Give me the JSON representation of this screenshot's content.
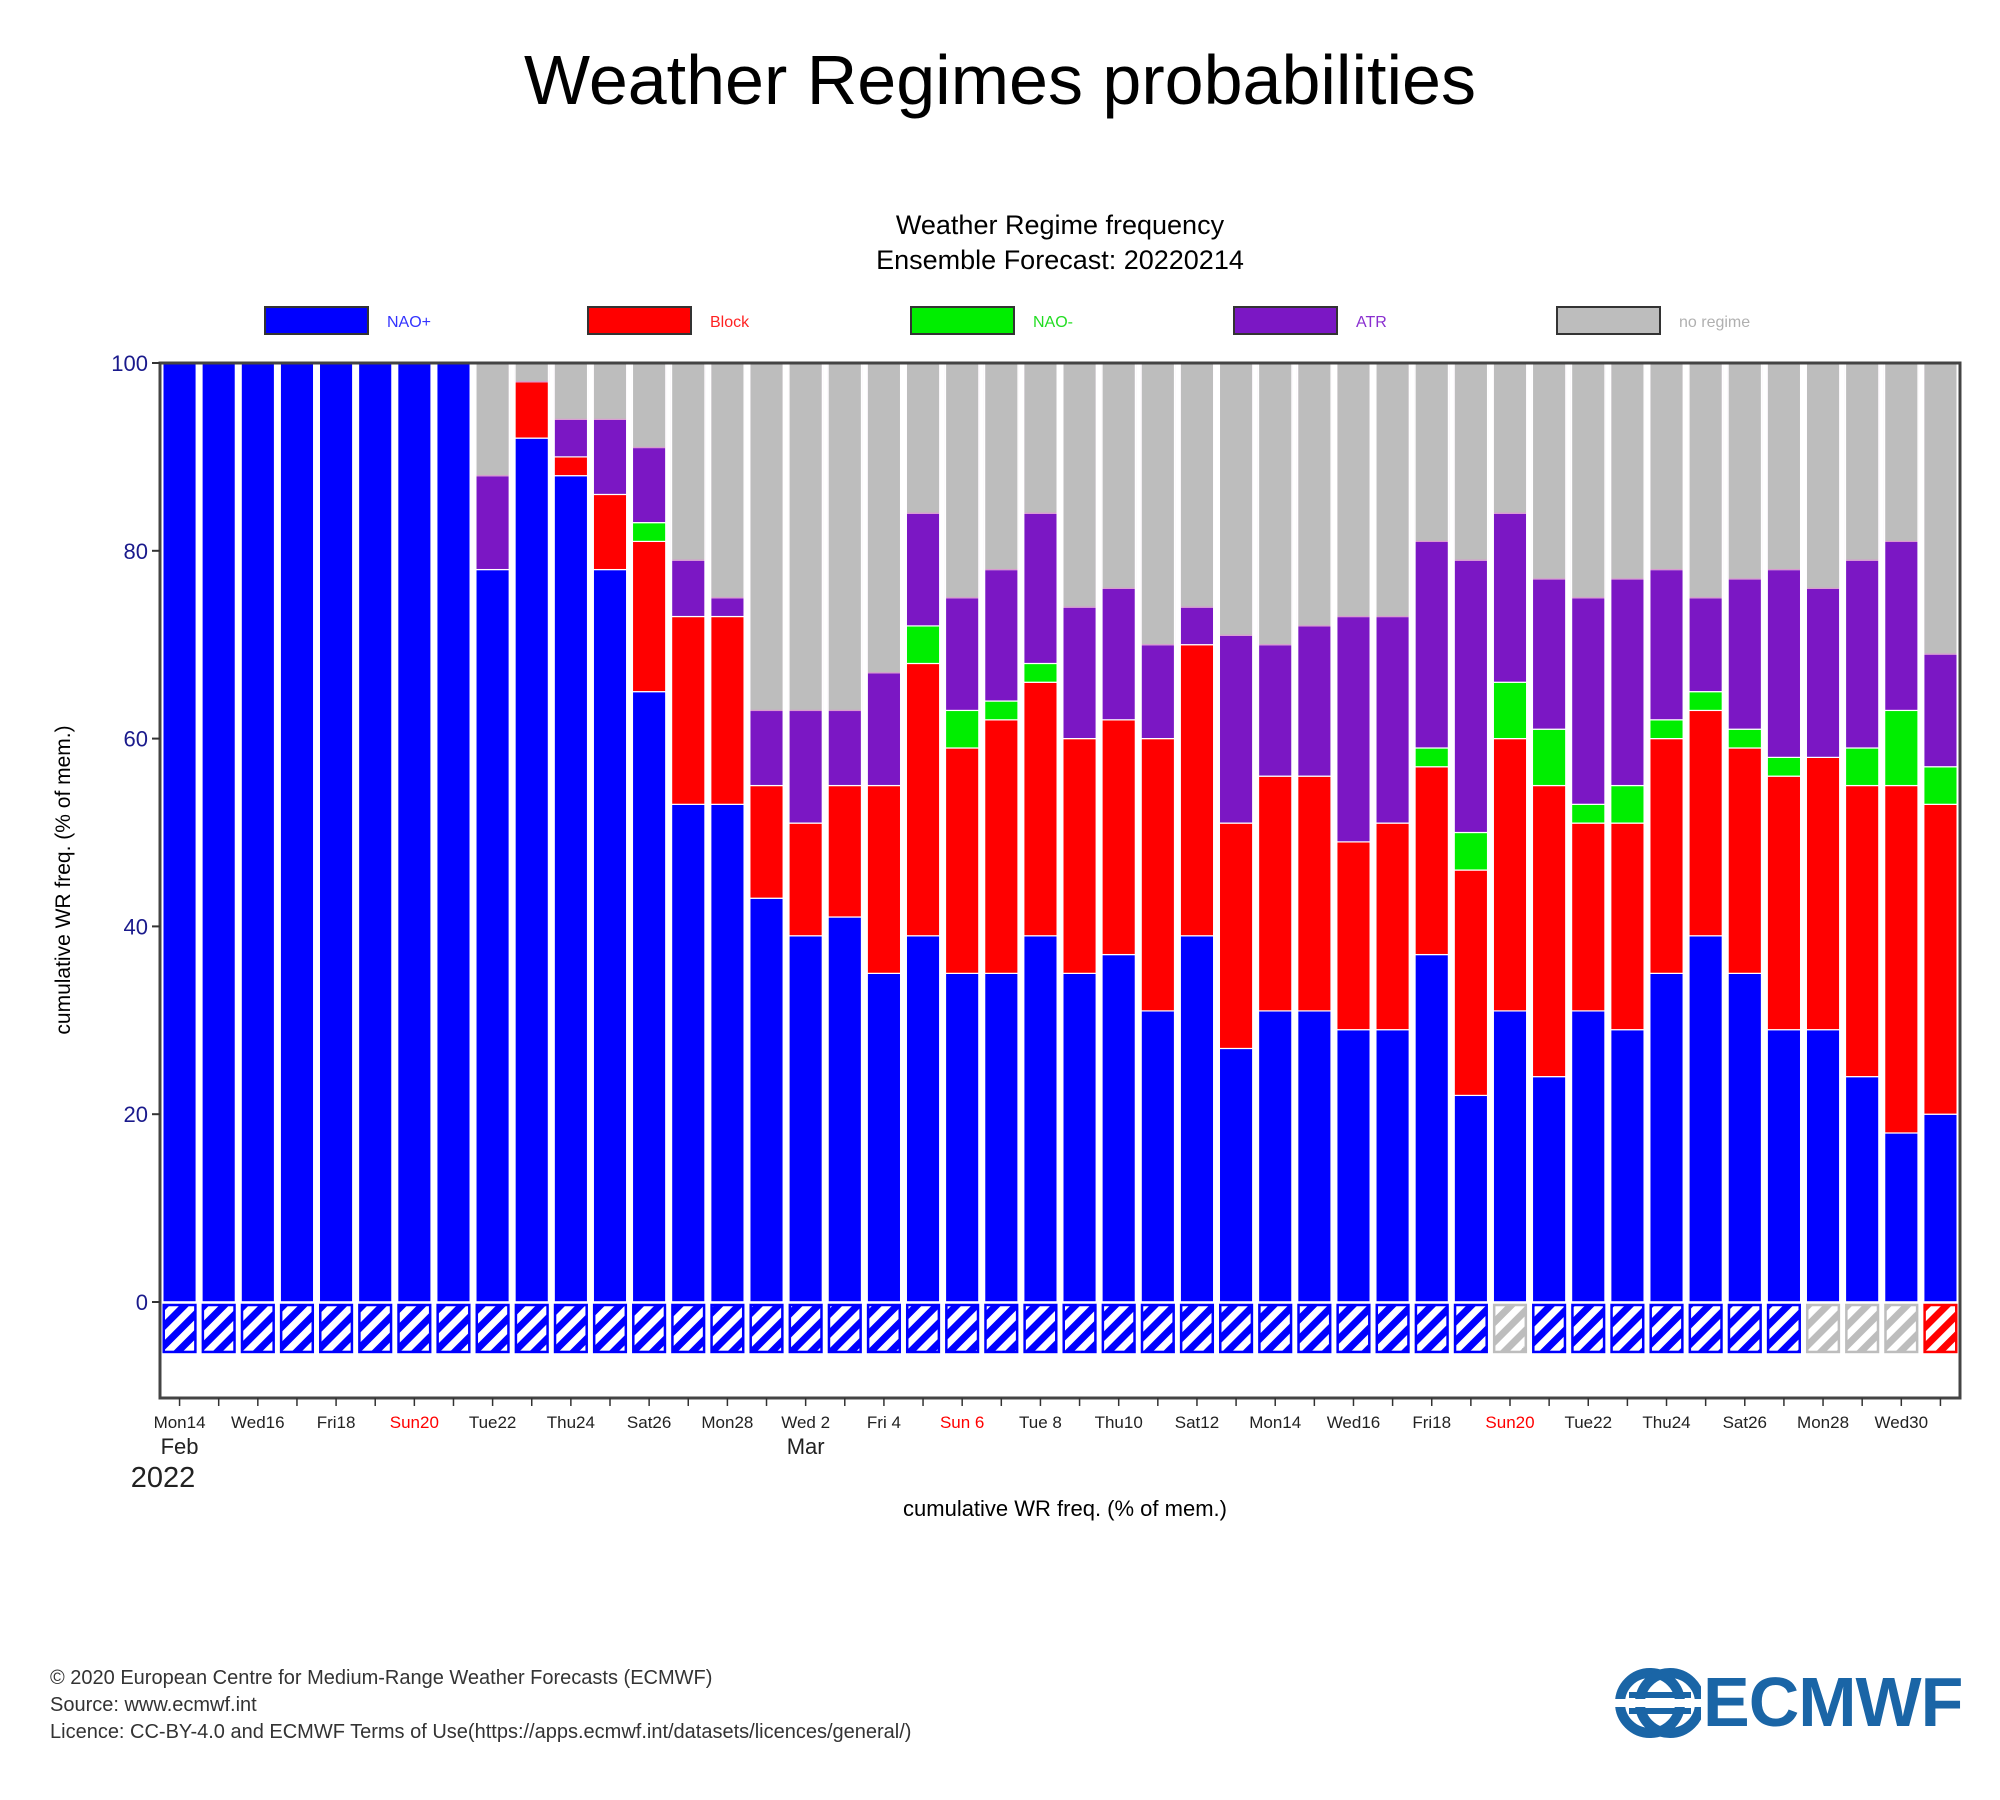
{
  "page": {
    "main_title": "Weather Regimes probabilities",
    "footer": [
      "© 2020 European Centre for Medium-Range Weather Forecasts (ECMWF)",
      "Source: www.ecmwf.int",
      "Licence: CC-BY-4.0 and ECMWF Terms of Use(https://apps.ecmwf.int/datasets/licences/general/)"
    ],
    "logo_text": "ECMWF"
  },
  "chart_data": {
    "type": "bar",
    "stacked": true,
    "title": "Weather Regime frequency",
    "subtitle": "Ensemble Forecast: 20220214",
    "ylabel": "cumulative WR freq. (% of mem.)",
    "xlabel": "cumulative WR freq. (% of mem.)",
    "ylim": [
      -10,
      100
    ],
    "yticks": [
      0,
      20,
      40,
      60,
      80,
      100
    ],
    "legend_position": "top",
    "x_dates": [
      "2022-02-14",
      "2022-02-15",
      "2022-02-16",
      "2022-02-17",
      "2022-02-18",
      "2022-02-19",
      "2022-02-20",
      "2022-02-21",
      "2022-02-22",
      "2022-02-23",
      "2022-02-24",
      "2022-02-25",
      "2022-02-26",
      "2022-02-27",
      "2022-02-28",
      "2022-03-01",
      "2022-03-02",
      "2022-03-03",
      "2022-03-04",
      "2022-03-05",
      "2022-03-06",
      "2022-03-07",
      "2022-03-08",
      "2022-03-09",
      "2022-03-10",
      "2022-03-11",
      "2022-03-12",
      "2022-03-13",
      "2022-03-14",
      "2022-03-15",
      "2022-03-16",
      "2022-03-17",
      "2022-03-18",
      "2022-03-19",
      "2022-03-20",
      "2022-03-21",
      "2022-03-22",
      "2022-03-23",
      "2022-03-24",
      "2022-03-25",
      "2022-03-26",
      "2022-03-27",
      "2022-03-28",
      "2022-03-29",
      "2022-03-30",
      "2022-03-31"
    ],
    "tick_labels": [
      {
        "index": 0,
        "label": "Mon14",
        "weekend": false
      },
      {
        "index": 2,
        "label": "Wed16",
        "weekend": false
      },
      {
        "index": 4,
        "label": "Fri18",
        "weekend": false
      },
      {
        "index": 6,
        "label": "Sun20",
        "weekend": true
      },
      {
        "index": 8,
        "label": "Tue22",
        "weekend": false
      },
      {
        "index": 10,
        "label": "Thu24",
        "weekend": false
      },
      {
        "index": 12,
        "label": "Sat26",
        "weekend": false
      },
      {
        "index": 14,
        "label": "Mon28",
        "weekend": false
      },
      {
        "index": 16,
        "label": "Wed 2",
        "weekend": false
      },
      {
        "index": 18,
        "label": "Fri 4",
        "weekend": false
      },
      {
        "index": 20,
        "label": "Sun 6",
        "weekend": true
      },
      {
        "index": 22,
        "label": "Tue 8",
        "weekend": false
      },
      {
        "index": 24,
        "label": "Thu10",
        "weekend": false
      },
      {
        "index": 26,
        "label": "Sat12",
        "weekend": false
      },
      {
        "index": 28,
        "label": "Mon14",
        "weekend": false
      },
      {
        "index": 30,
        "label": "Wed16",
        "weekend": false
      },
      {
        "index": 32,
        "label": "Fri18",
        "weekend": false
      },
      {
        "index": 34,
        "label": "Sun20",
        "weekend": true
      },
      {
        "index": 36,
        "label": "Tue22",
        "weekend": false
      },
      {
        "index": 38,
        "label": "Thu24",
        "weekend": false
      },
      {
        "index": 40,
        "label": "Sat26",
        "weekend": false
      },
      {
        "index": 42,
        "label": "Mon28",
        "weekend": false
      },
      {
        "index": 44,
        "label": "Wed30",
        "weekend": false
      }
    ],
    "month_labels": [
      {
        "index": 0,
        "label": "Feb"
      },
      {
        "index": 16,
        "label": "Mar"
      }
    ],
    "year_label": "2022",
    "colors": {
      "NAO+": "#0000ff",
      "Block": "#ff0000",
      "NAO-": "#00ee00",
      "ATR": "#7b17c4",
      "no regime": "#bdbdbd"
    },
    "series": [
      {
        "name": "NAO+",
        "values": [
          100,
          100,
          100,
          100,
          100,
          100,
          100,
          100,
          78,
          92,
          88,
          78,
          65,
          53,
          53,
          43,
          39,
          41,
          35,
          39,
          35,
          35,
          39,
          35,
          37,
          31,
          39,
          27,
          31,
          31,
          29,
          29,
          37,
          22,
          31,
          24,
          31,
          29,
          35,
          39,
          35,
          29,
          29,
          24,
          18,
          20
        ]
      },
      {
        "name": "Block",
        "values": [
          0,
          0,
          0,
          0,
          0,
          0,
          0,
          0,
          0,
          6,
          2,
          8,
          16,
          20,
          20,
          12,
          12,
          14,
          20,
          29,
          24,
          27,
          27,
          25,
          25,
          29,
          31,
          24,
          25,
          25,
          20,
          22,
          20,
          24,
          29,
          31,
          20,
          22,
          25,
          24,
          24,
          27,
          29,
          31,
          37,
          33
        ]
      },
      {
        "name": "NAO-",
        "values": [
          0,
          0,
          0,
          0,
          0,
          0,
          0,
          0,
          0,
          0,
          0,
          0,
          2,
          0,
          0,
          0,
          0,
          0,
          0,
          4,
          4,
          2,
          2,
          0,
          0,
          0,
          0,
          0,
          0,
          0,
          0,
          0,
          2,
          4,
          6,
          6,
          2,
          4,
          2,
          2,
          2,
          2,
          0,
          4,
          8,
          4
        ]
      },
      {
        "name": "ATR",
        "values": [
          0,
          0,
          0,
          0,
          0,
          0,
          0,
          0,
          10,
          0,
          4,
          8,
          8,
          6,
          2,
          8,
          12,
          8,
          12,
          12,
          12,
          14,
          16,
          14,
          14,
          10,
          4,
          20,
          14,
          16,
          24,
          22,
          22,
          29,
          18,
          16,
          22,
          22,
          16,
          10,
          16,
          20,
          18,
          20,
          18,
          12
        ]
      },
      {
        "name": "no regime",
        "values": [
          0,
          0,
          0,
          0,
          0,
          0,
          0,
          0,
          12,
          2,
          6,
          6,
          9,
          21,
          25,
          37,
          37,
          37,
          33,
          16,
          25,
          22,
          16,
          26,
          24,
          30,
          26,
          29,
          30,
          28,
          27,
          27,
          19,
          21,
          16,
          23,
          25,
          23,
          22,
          25,
          23,
          22,
          24,
          21,
          19,
          31
        ]
      }
    ],
    "dominant_regime": [
      "NAO+",
      "NAO+",
      "NAO+",
      "NAO+",
      "NAO+",
      "NAO+",
      "NAO+",
      "NAO+",
      "NAO+",
      "NAO+",
      "NAO+",
      "NAO+",
      "NAO+",
      "NAO+",
      "NAO+",
      "NAO+",
      "NAO+",
      "NAO+",
      "NAO+",
      "NAO+",
      "NAO+",
      "NAO+",
      "NAO+",
      "NAO+",
      "NAO+",
      "NAO+",
      "NAO+",
      "NAO+",
      "NAO+",
      "NAO+",
      "NAO+",
      "NAO+",
      "NAO+",
      "NAO+",
      "no regime",
      "NAO+",
      "NAO+",
      "NAO+",
      "NAO+",
      "NAO+",
      "NAO+",
      "NAO+",
      "no regime",
      "no regime",
      "no regime",
      "Block"
    ]
  }
}
